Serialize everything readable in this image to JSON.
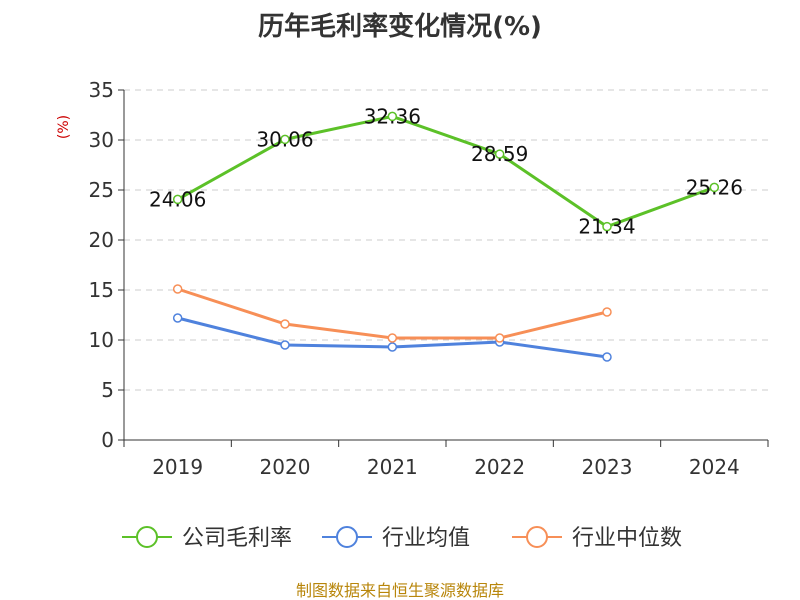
{
  "chart_data": {
    "type": "line",
    "title": "历年毛利率变化情况(%)",
    "ylabel": "(%)",
    "xlabel": "",
    "categories": [
      "2019",
      "2020",
      "2021",
      "2022",
      "2023",
      "2024"
    ],
    "ylim": [
      0,
      35
    ],
    "yticks": [
      0,
      5,
      10,
      15,
      20,
      25,
      30,
      35
    ],
    "grid": true,
    "legend_position": "bottom",
    "series": [
      {
        "name": "公司毛利率",
        "color": "#5cc128",
        "values": [
          24.06,
          30.06,
          32.36,
          28.59,
          21.34,
          25.26
        ],
        "labels": [
          "24.06",
          "30.06",
          "32.36",
          "28.59",
          "21.34",
          "25.26"
        ],
        "show_labels": true
      },
      {
        "name": "行业均值",
        "color": "#4f82dd",
        "values": [
          12.2,
          9.5,
          9.3,
          9.8,
          8.3,
          null
        ],
        "show_labels": false
      },
      {
        "name": "行业中位数",
        "color": "#f78f57",
        "values": [
          15.1,
          11.6,
          10.2,
          10.2,
          12.8,
          null
        ],
        "show_labels": false
      }
    ],
    "source": "制图数据来自恒生聚源数据库"
  }
}
